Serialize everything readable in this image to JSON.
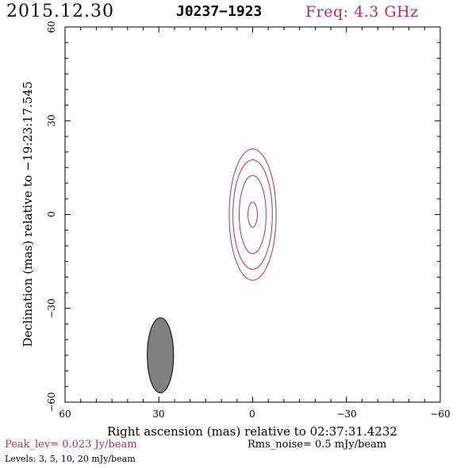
{
  "header": {
    "date": "2015.12.30",
    "source": "J0237−1923",
    "freq": "Freq: 4.3 GHz"
  },
  "axes": {
    "xlabel": "Right ascension (mas) relative to 02:37:31.4232",
    "ylabel": "Declination (mas) relative to −19:23:17.545",
    "x_ticks": [
      "60",
      "30",
      "0",
      "−30",
      "−60"
    ],
    "y_ticks": [
      "60",
      "30",
      "0",
      "−30",
      "−60"
    ],
    "xlim": [
      60,
      -60
    ],
    "ylim": [
      -60,
      60
    ]
  },
  "footer": {
    "peak": "Peak_lev=  0.023 Jy/beam",
    "rms": "Rms_noise=  0.5 mJy/beam",
    "levels": "Levels:  3,  5,  10,  20 mJy/beam"
  },
  "colors": {
    "contour": "#b03060",
    "beam_fill": "#808080",
    "peak_text": "#b03060"
  },
  "map": {
    "contours_mas": [
      {
        "level": 3,
        "ra": 0,
        "dec": 0,
        "semi_ra": 7.5,
        "semi_dec": 21
      },
      {
        "level": 5,
        "ra": 0,
        "dec": 0,
        "semi_ra": 6.3,
        "semi_dec": 17.5
      },
      {
        "level": 10,
        "ra": 0,
        "dec": 0,
        "semi_ra": 4.3,
        "semi_dec": 12.5
      },
      {
        "level": 20,
        "ra": 0,
        "dec": 0,
        "semi_ra": 1.5,
        "semi_dec": 4
      }
    ],
    "beam_mas": {
      "ra": 29.5,
      "dec": -45,
      "semi_ra": 4.2,
      "semi_dec": 12
    }
  }
}
